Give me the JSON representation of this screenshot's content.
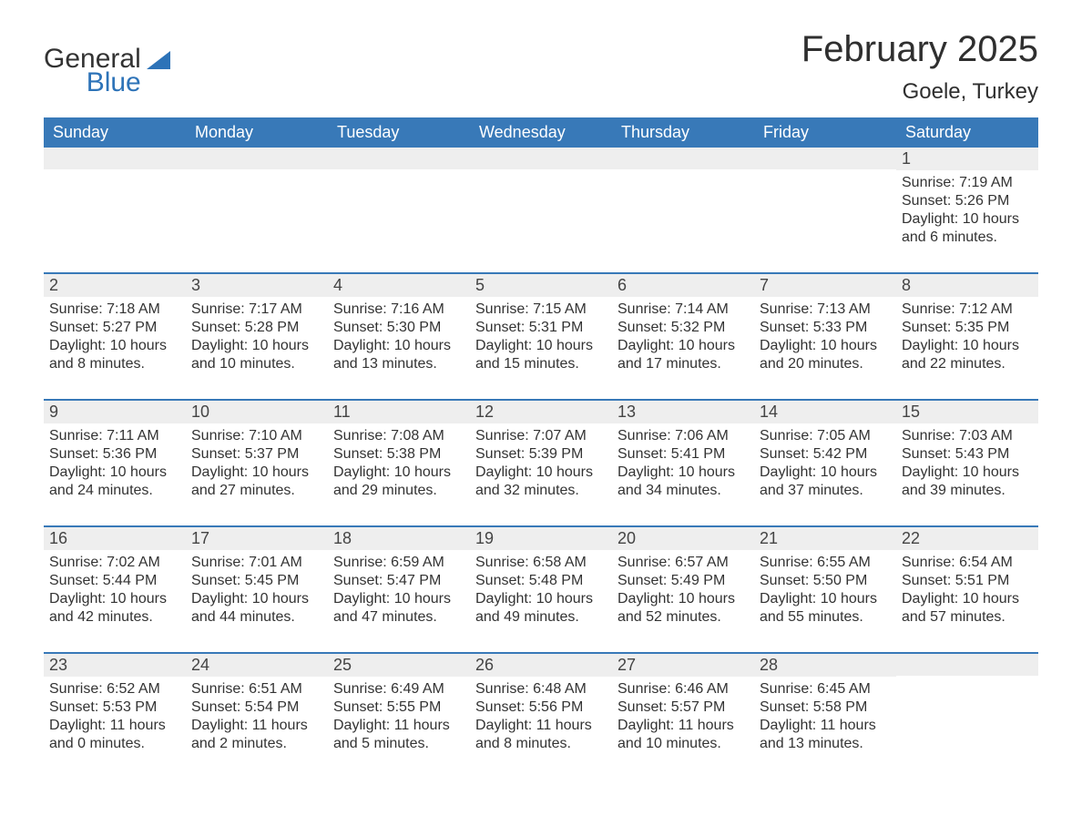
{
  "logo": {
    "general": "General",
    "blue": "Blue",
    "text_color": "#333333",
    "blue_color": "#2d73b8"
  },
  "title": "February 2025",
  "location": "Goele, Turkey",
  "colors": {
    "header_bg": "#3879b8",
    "header_text": "#ffffff",
    "daynum_bg": "#eeeeee",
    "week_divider": "#3879b8",
    "body_text": "#333333",
    "page_bg": "#ffffff"
  },
  "typography": {
    "title_fontsize_pt": 30,
    "location_fontsize_pt": 18,
    "weekday_fontsize_pt": 14,
    "daynum_fontsize_pt": 14,
    "body_fontsize_pt": 12,
    "font_family": "Arial"
  },
  "weekdays": [
    "Sunday",
    "Monday",
    "Tuesday",
    "Wednesday",
    "Thursday",
    "Friday",
    "Saturday"
  ],
  "weeks": [
    [
      {
        "day": "",
        "sunrise": "",
        "sunset": "",
        "daylight": ""
      },
      {
        "day": "",
        "sunrise": "",
        "sunset": "",
        "daylight": ""
      },
      {
        "day": "",
        "sunrise": "",
        "sunset": "",
        "daylight": ""
      },
      {
        "day": "",
        "sunrise": "",
        "sunset": "",
        "daylight": ""
      },
      {
        "day": "",
        "sunrise": "",
        "sunset": "",
        "daylight": ""
      },
      {
        "day": "",
        "sunrise": "",
        "sunset": "",
        "daylight": ""
      },
      {
        "day": "1",
        "sunrise": "Sunrise: 7:19 AM",
        "sunset": "Sunset: 5:26 PM",
        "daylight": "Daylight: 10 hours and 6 minutes."
      }
    ],
    [
      {
        "day": "2",
        "sunrise": "Sunrise: 7:18 AM",
        "sunset": "Sunset: 5:27 PM",
        "daylight": "Daylight: 10 hours and 8 minutes."
      },
      {
        "day": "3",
        "sunrise": "Sunrise: 7:17 AM",
        "sunset": "Sunset: 5:28 PM",
        "daylight": "Daylight: 10 hours and 10 minutes."
      },
      {
        "day": "4",
        "sunrise": "Sunrise: 7:16 AM",
        "sunset": "Sunset: 5:30 PM",
        "daylight": "Daylight: 10 hours and 13 minutes."
      },
      {
        "day": "5",
        "sunrise": "Sunrise: 7:15 AM",
        "sunset": "Sunset: 5:31 PM",
        "daylight": "Daylight: 10 hours and 15 minutes."
      },
      {
        "day": "6",
        "sunrise": "Sunrise: 7:14 AM",
        "sunset": "Sunset: 5:32 PM",
        "daylight": "Daylight: 10 hours and 17 minutes."
      },
      {
        "day": "7",
        "sunrise": "Sunrise: 7:13 AM",
        "sunset": "Sunset: 5:33 PM",
        "daylight": "Daylight: 10 hours and 20 minutes."
      },
      {
        "day": "8",
        "sunrise": "Sunrise: 7:12 AM",
        "sunset": "Sunset: 5:35 PM",
        "daylight": "Daylight: 10 hours and 22 minutes."
      }
    ],
    [
      {
        "day": "9",
        "sunrise": "Sunrise: 7:11 AM",
        "sunset": "Sunset: 5:36 PM",
        "daylight": "Daylight: 10 hours and 24 minutes."
      },
      {
        "day": "10",
        "sunrise": "Sunrise: 7:10 AM",
        "sunset": "Sunset: 5:37 PM",
        "daylight": "Daylight: 10 hours and 27 minutes."
      },
      {
        "day": "11",
        "sunrise": "Sunrise: 7:08 AM",
        "sunset": "Sunset: 5:38 PM",
        "daylight": "Daylight: 10 hours and 29 minutes."
      },
      {
        "day": "12",
        "sunrise": "Sunrise: 7:07 AM",
        "sunset": "Sunset: 5:39 PM",
        "daylight": "Daylight: 10 hours and 32 minutes."
      },
      {
        "day": "13",
        "sunrise": "Sunrise: 7:06 AM",
        "sunset": "Sunset: 5:41 PM",
        "daylight": "Daylight: 10 hours and 34 minutes."
      },
      {
        "day": "14",
        "sunrise": "Sunrise: 7:05 AM",
        "sunset": "Sunset: 5:42 PM",
        "daylight": "Daylight: 10 hours and 37 minutes."
      },
      {
        "day": "15",
        "sunrise": "Sunrise: 7:03 AM",
        "sunset": "Sunset: 5:43 PM",
        "daylight": "Daylight: 10 hours and 39 minutes."
      }
    ],
    [
      {
        "day": "16",
        "sunrise": "Sunrise: 7:02 AM",
        "sunset": "Sunset: 5:44 PM",
        "daylight": "Daylight: 10 hours and 42 minutes."
      },
      {
        "day": "17",
        "sunrise": "Sunrise: 7:01 AM",
        "sunset": "Sunset: 5:45 PM",
        "daylight": "Daylight: 10 hours and 44 minutes."
      },
      {
        "day": "18",
        "sunrise": "Sunrise: 6:59 AM",
        "sunset": "Sunset: 5:47 PM",
        "daylight": "Daylight: 10 hours and 47 minutes."
      },
      {
        "day": "19",
        "sunrise": "Sunrise: 6:58 AM",
        "sunset": "Sunset: 5:48 PM",
        "daylight": "Daylight: 10 hours and 49 minutes."
      },
      {
        "day": "20",
        "sunrise": "Sunrise: 6:57 AM",
        "sunset": "Sunset: 5:49 PM",
        "daylight": "Daylight: 10 hours and 52 minutes."
      },
      {
        "day": "21",
        "sunrise": "Sunrise: 6:55 AM",
        "sunset": "Sunset: 5:50 PM",
        "daylight": "Daylight: 10 hours and 55 minutes."
      },
      {
        "day": "22",
        "sunrise": "Sunrise: 6:54 AM",
        "sunset": "Sunset: 5:51 PM",
        "daylight": "Daylight: 10 hours and 57 minutes."
      }
    ],
    [
      {
        "day": "23",
        "sunrise": "Sunrise: 6:52 AM",
        "sunset": "Sunset: 5:53 PM",
        "daylight": "Daylight: 11 hours and 0 minutes."
      },
      {
        "day": "24",
        "sunrise": "Sunrise: 6:51 AM",
        "sunset": "Sunset: 5:54 PM",
        "daylight": "Daylight: 11 hours and 2 minutes."
      },
      {
        "day": "25",
        "sunrise": "Sunrise: 6:49 AM",
        "sunset": "Sunset: 5:55 PM",
        "daylight": "Daylight: 11 hours and 5 minutes."
      },
      {
        "day": "26",
        "sunrise": "Sunrise: 6:48 AM",
        "sunset": "Sunset: 5:56 PM",
        "daylight": "Daylight: 11 hours and 8 minutes."
      },
      {
        "day": "27",
        "sunrise": "Sunrise: 6:46 AM",
        "sunset": "Sunset: 5:57 PM",
        "daylight": "Daylight: 11 hours and 10 minutes."
      },
      {
        "day": "28",
        "sunrise": "Sunrise: 6:45 AM",
        "sunset": "Sunset: 5:58 PM",
        "daylight": "Daylight: 11 hours and 13 minutes."
      },
      {
        "day": "",
        "sunrise": "",
        "sunset": "",
        "daylight": ""
      }
    ]
  ]
}
